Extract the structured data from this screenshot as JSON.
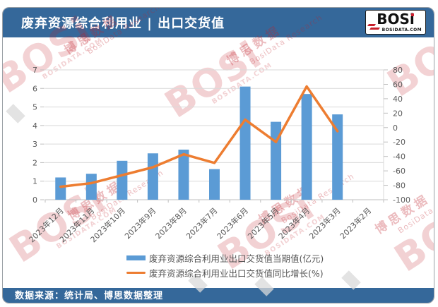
{
  "header": {
    "title": "废弃资源综合利用业 | 出口交货值",
    "logo": {
      "text": "BOSi",
      "subtext": "BOSIDATA.COM"
    }
  },
  "footer": {
    "source_text": "数据来源：统计局、博思数据整理"
  },
  "legend": [
    {
      "label": "废弃资源综合利用业出口交货值当期值(亿元)",
      "color": "#5B9BD5",
      "type": "bar"
    },
    {
      "label": "废弃资源综合利用业出口交货值同比增长(%)",
      "color": "#ED7D31",
      "type": "line"
    }
  ],
  "watermark": {
    "cn": "博思数据",
    "en": "BosiData Research",
    "big": "BOSi",
    "com": "BOSIDATA.COM"
  },
  "colors": {
    "header_bg": "#35689A",
    "bar": "#5B9BD5",
    "line": "#ED7D31",
    "grid": "#D9D9D9",
    "axis_line": "#BFBFBF",
    "axis_text": "#595959",
    "watermark_red": "#C0202A"
  },
  "chart_data": {
    "type": "combo",
    "categories": [
      "2023年12月",
      "2023年11月",
      "2023年10月",
      "2023年9月",
      "2023年8月",
      "2023年7月",
      "2023年6月",
      "2023年5月",
      "2023年4月",
      "2023年3月",
      "2023年2月"
    ],
    "series": [
      {
        "name": "废弃资源综合利用业出口交货值当期值(亿元)",
        "type": "bar",
        "axis": "left",
        "color": "#5B9BD5",
        "values": [
          1.2,
          1.4,
          2.1,
          2.5,
          2.7,
          1.65,
          6.1,
          4.2,
          5.7,
          4.6,
          null
        ]
      },
      {
        "name": "废弃资源综合利用业出口交货值同比增长(%)",
        "type": "line",
        "axis": "right",
        "color": "#ED7D31",
        "values": [
          -82,
          -77,
          -66,
          -55,
          -37,
          -49,
          11,
          -20,
          57,
          -5,
          null
        ]
      }
    ],
    "left_axis": {
      "min": 0,
      "max": 7,
      "step": 1,
      "ticks": [
        0,
        1,
        2,
        3,
        4,
        5,
        6,
        7
      ]
    },
    "right_axis": {
      "min": -100,
      "max": 80,
      "step": 20,
      "ticks": [
        80,
        60,
        40,
        20,
        0,
        -20,
        -40,
        -60,
        -80,
        -100
      ]
    },
    "grid": true,
    "legend_position": "bottom"
  }
}
